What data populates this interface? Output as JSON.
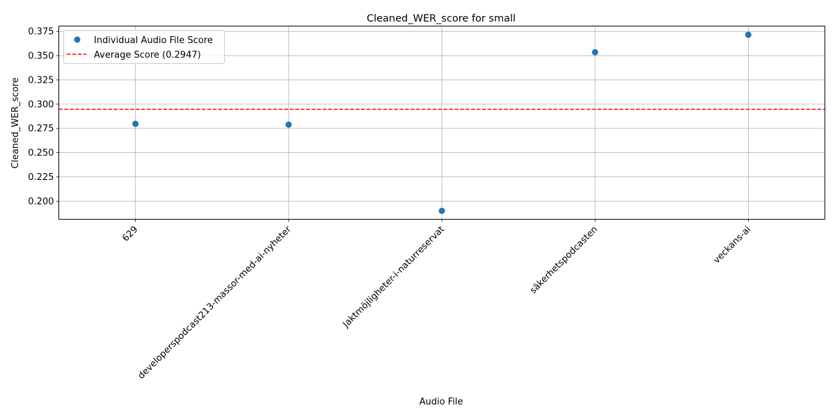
{
  "chart_data": {
    "type": "scatter",
    "title": "Cleaned_WER_score for small",
    "xlabel": "Audio File",
    "ylabel": "Cleaned_WER_score",
    "categories": [
      "629",
      "developerspodcast213-massor-med-ai-nyheter",
      "Jaktmöjligheter-i-naturreservat",
      "säkerhetspodcasten",
      "veckans-ai"
    ],
    "series": [
      {
        "name": "Individual Audio File Score",
        "values": [
          0.2797,
          0.2789,
          0.19,
          0.3535,
          0.3715
        ],
        "color": "#1f77b4"
      }
    ],
    "reference_line": {
      "name": "Average Score (0.2947)",
      "value": 0.2947,
      "color": "#ff0000",
      "style": "dashed"
    },
    "ylim": [
      0.1813,
      0.3805
    ],
    "yticks": [
      "0.200",
      "0.225",
      "0.250",
      "0.275",
      "0.300",
      "0.325",
      "0.350",
      "0.375"
    ],
    "ytick_values": [
      0.2,
      0.225,
      0.25,
      0.275,
      0.3,
      0.325,
      0.35,
      0.375
    ],
    "grid": true,
    "legend_position": "top-left"
  }
}
